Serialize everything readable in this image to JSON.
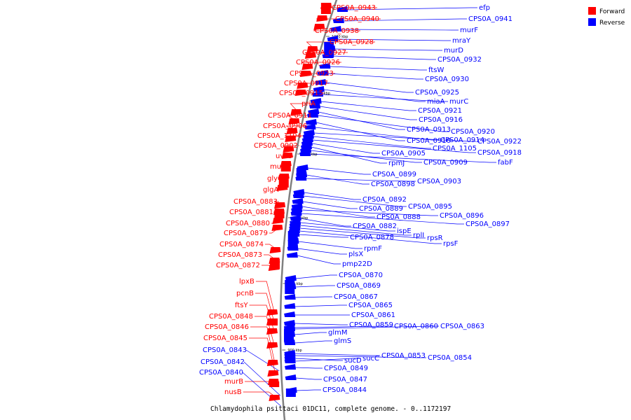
{
  "legend": {
    "forward_label": "Forward",
    "reverse_label": "Reverse",
    "forward_color": "#ff0000",
    "reverse_color": "#0000ff"
  },
  "caption": "Chlamydophila psittaci 01DC11, complete genome. - 0..1172197",
  "backbone_color": "#808080",
  "scale_ticks": [
    "1000 kbp",
    "980 kbp",
    "960 kbp",
    "940 kbp",
    "920 kbp",
    "900 kbp"
  ],
  "forward_labels": [
    "CPS0A_0943",
    "CPS0A_0940",
    "CPS0A_0938",
    "CPS0A_0928",
    "CPS0A_0927",
    "CPS0A_0926",
    "CPS0A_0923",
    "CPS0A_0917",
    "CPS0A_0915",
    "priA",
    "CPS0A_0911",
    "CPS0A_0906",
    "CPS0A_1104",
    "CPS0A_0902",
    "uvrC",
    "mutS",
    "glyQ",
    "glgA",
    "CPS0A_0883",
    "CPS0A_0881",
    "CPS0A_0880",
    "CPS0A_0879",
    "CPS0A_0874",
    "CPS0A_0873",
    "CPS0A_0872",
    "lpxB",
    "pcnB",
    "ftsY",
    "CPS0A_0848",
    "CPS0A_0846",
    "CPS0A_0845",
    "murB",
    "nusB"
  ],
  "reverse_left_labels": [
    "CPS0A_0843",
    "CPS0A_0842",
    "CPS0A_0840"
  ],
  "reverse_labels": [
    "efp",
    "CPS0A_0941",
    "murF",
    "mraY",
    "murD",
    "CPS0A_0932",
    "ftsW",
    "CPS0A_0930",
    "CPS0A_0925",
    "miaA",
    "murC",
    "CPS0A_0921",
    "CPS0A_0916",
    "CPS0A_0913",
    "CPS0A_0920",
    "CPS0A_0910",
    "CPS0A_0914",
    "CPS0A_0922",
    "CPS0A_1105",
    "CPS0A_0918",
    "CPS0A_0905",
    "rpmJ",
    "CPS0A_0909",
    "fabF",
    "CPS0A_0899",
    "CPS0A_0898",
    "CPS0A_0903",
    "CPS0A_0892",
    "CPS0A_0895",
    "CPS0A_0889",
    "CPS0A_0888",
    "CPS0A_0896",
    "CPS0A_0897",
    "CPS0A_0882",
    "ispE",
    "rplI",
    "rpsR",
    "rpsF",
    "CPS0A_0878",
    "rpmF",
    "plsX",
    "pmp22D",
    "CPS0A_0870",
    "CPS0A_0869",
    "CPS0A_0867",
    "CPS0A_0865",
    "CPS0A_0861",
    "CPS0A_0859",
    "CPS0A_0860",
    "CPS0A_0863",
    "glmM",
    "glmS",
    "CPS0A_0853",
    "CPS0A_0854",
    "sucD",
    "sucC",
    "CPS0A_0849",
    "CPS0A_0847",
    "CPS0A_0844"
  ]
}
